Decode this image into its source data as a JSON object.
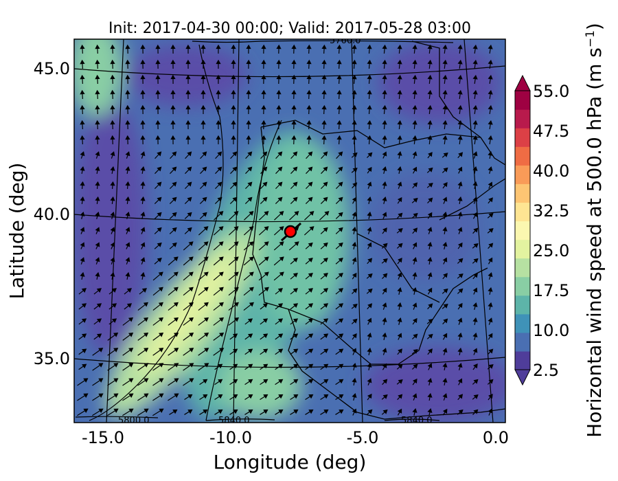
{
  "chart_data": {
    "type": "heatmap",
    "title": "Init: 2017-04-30 00:00; Valid: 2017-05-28 03:00",
    "xlabel": "Longitude (deg)",
    "ylabel": "Latitude (deg)",
    "xlim": [
      -15.9,
      0.3
    ],
    "ylim": [
      32.7,
      46.1
    ],
    "x_ticks": [
      "-15.0",
      "-10.0",
      "-5.0",
      "0.0"
    ],
    "x_tick_values": [
      -15,
      -10,
      -5,
      0
    ],
    "y_ticks": [
      "35.0",
      "40.0",
      "45.0"
    ],
    "y_tick_values": [
      35,
      40,
      45
    ],
    "colorbar": {
      "label": "Horizontal wind speed at 500.0 hPa (m s",
      "label_superscript": "−1",
      "label_close": ")",
      "tick_labels": [
        "2.5",
        "10.0",
        "17.5",
        "25.0",
        "32.5",
        "40.0",
        "47.5",
        "55.0"
      ],
      "tick_values": [
        2.5,
        10,
        17.5,
        25,
        32.5,
        40,
        47.5,
        55
      ],
      "range": [
        2.5,
        55
      ],
      "extend": "both",
      "colormap": "Spectral_r",
      "colors": [
        "#4f3d9a",
        "#4a6fb2",
        "#3f92b8",
        "#5db4a9",
        "#89cea4",
        "#b6e1a2",
        "#e3f3a0",
        "#fbf7b0",
        "#fee593",
        "#fdc573",
        "#f99b58",
        "#ef6c44",
        "#dc4046",
        "#b81a4c",
        "#9e0142"
      ]
    },
    "contour_labels": [
      "5760.0",
      "5800.0",
      "5840.0",
      "5840.0"
    ],
    "marker": {
      "lon": -7.6,
      "lat": 39.3,
      "color": "#ff0000"
    },
    "quiver": "wind vectors, mostly southwest to northeast over the domain"
  }
}
